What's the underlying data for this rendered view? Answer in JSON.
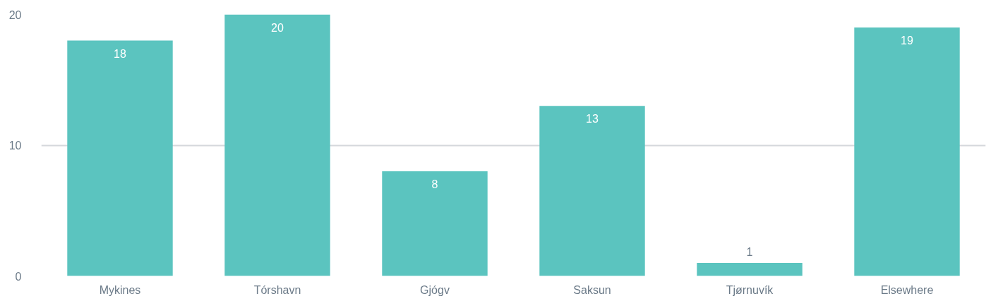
{
  "chart_data": {
    "type": "bar",
    "categories": [
      "Mykines",
      "Tórshavn",
      "Gjógv",
      "Saksun",
      "Tjørnuvík",
      "Elsewhere"
    ],
    "values": [
      18,
      20,
      8,
      13,
      1,
      19
    ],
    "color": "#5bc4bf",
    "ylim": [
      0,
      20
    ],
    "yticks": [
      0,
      10,
      20
    ],
    "grid": "y",
    "data_labels": true
  }
}
